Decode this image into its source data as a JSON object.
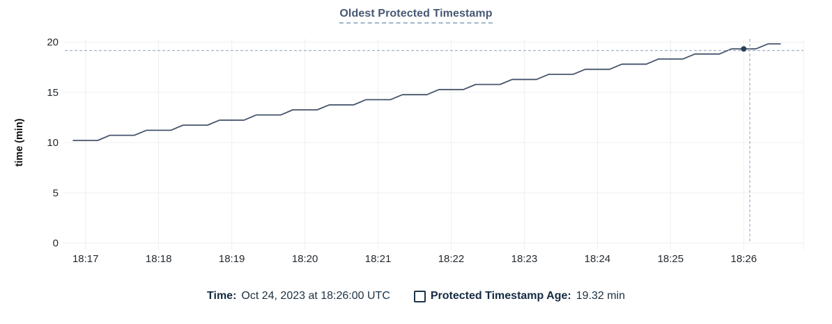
{
  "chart_data": {
    "type": "line",
    "title": "Oldest Protected Timestamp",
    "xlabel": "",
    "ylabel": "time (min)",
    "ylim": [
      0,
      20
    ],
    "yticks": [
      0,
      5,
      10,
      15,
      20
    ],
    "xticks": [
      "18:17",
      "18:18",
      "18:19",
      "18:20",
      "18:21",
      "18:22",
      "18:23",
      "18:24",
      "18:25",
      "18:26"
    ],
    "x_domain": [
      "18:16:43",
      "18:26:49"
    ],
    "grid": true,
    "legend_position": "bottom",
    "series": [
      {
        "name": "Protected Timestamp Age",
        "unit": "min",
        "points": [
          [
            "18:16:50",
            10.21
          ],
          [
            "18:17:00",
            10.21
          ],
          [
            "18:17:10",
            10.21
          ],
          [
            "18:17:20",
            10.72
          ],
          [
            "18:17:30",
            10.72
          ],
          [
            "18:17:40",
            10.72
          ],
          [
            "18:17:50",
            11.22
          ],
          [
            "18:18:00",
            11.22
          ],
          [
            "18:18:10",
            11.22
          ],
          [
            "18:18:20",
            11.73
          ],
          [
            "18:18:30",
            11.73
          ],
          [
            "18:18:40",
            11.73
          ],
          [
            "18:18:50",
            12.23
          ],
          [
            "18:19:00",
            12.23
          ],
          [
            "18:19:10",
            12.23
          ],
          [
            "18:19:20",
            12.74
          ],
          [
            "18:19:30",
            12.74
          ],
          [
            "18:19:40",
            12.74
          ],
          [
            "18:19:50",
            13.25
          ],
          [
            "18:20:00",
            13.25
          ],
          [
            "18:20:10",
            13.25
          ],
          [
            "18:20:20",
            13.75
          ],
          [
            "18:20:30",
            13.75
          ],
          [
            "18:20:40",
            13.75
          ],
          [
            "18:20:50",
            14.26
          ],
          [
            "18:21:00",
            14.26
          ],
          [
            "18:21:10",
            14.26
          ],
          [
            "18:21:20",
            14.76
          ],
          [
            "18:21:30",
            14.76
          ],
          [
            "18:21:40",
            14.76
          ],
          [
            "18:21:50",
            15.27
          ],
          [
            "18:22:00",
            15.27
          ],
          [
            "18:22:10",
            15.27
          ],
          [
            "18:22:20",
            15.78
          ],
          [
            "18:22:30",
            15.78
          ],
          [
            "18:22:40",
            15.78
          ],
          [
            "18:22:50",
            16.28
          ],
          [
            "18:23:00",
            16.28
          ],
          [
            "18:23:10",
            16.28
          ],
          [
            "18:23:20",
            16.79
          ],
          [
            "18:23:30",
            16.79
          ],
          [
            "18:23:40",
            16.79
          ],
          [
            "18:23:50",
            17.29
          ],
          [
            "18:24:00",
            17.29
          ],
          [
            "18:24:10",
            17.29
          ],
          [
            "18:24:20",
            17.8
          ],
          [
            "18:24:30",
            17.8
          ],
          [
            "18:24:40",
            17.8
          ],
          [
            "18:24:50",
            18.31
          ],
          [
            "18:25:00",
            18.31
          ],
          [
            "18:25:10",
            18.31
          ],
          [
            "18:25:20",
            18.81
          ],
          [
            "18:25:30",
            18.81
          ],
          [
            "18:25:40",
            18.81
          ],
          [
            "18:25:50",
            19.32
          ],
          [
            "18:26:00",
            19.32
          ],
          [
            "18:26:10",
            19.32
          ],
          [
            "18:26:20",
            19.82
          ],
          [
            "18:26:30",
            19.82
          ]
        ]
      }
    ],
    "hover": {
      "time": "18:26:00",
      "value": 19.32,
      "crosshair_time": "18:26:05",
      "crosshair_value": 19.16
    }
  },
  "legend": {
    "time_label": "Time:",
    "time_value": "Oct 24, 2023 at 18:26:00 UTC",
    "series_label": "Protected Timestamp Age:",
    "series_value": "19.32 min"
  },
  "colors": {
    "line": "#45536B",
    "dot": "#2B3F57",
    "crosshair": "#9FB3C8",
    "grid": "#EFEFEF",
    "title": "#475872",
    "tick_text": "#24292E",
    "legend_text": "#1B3043"
  }
}
